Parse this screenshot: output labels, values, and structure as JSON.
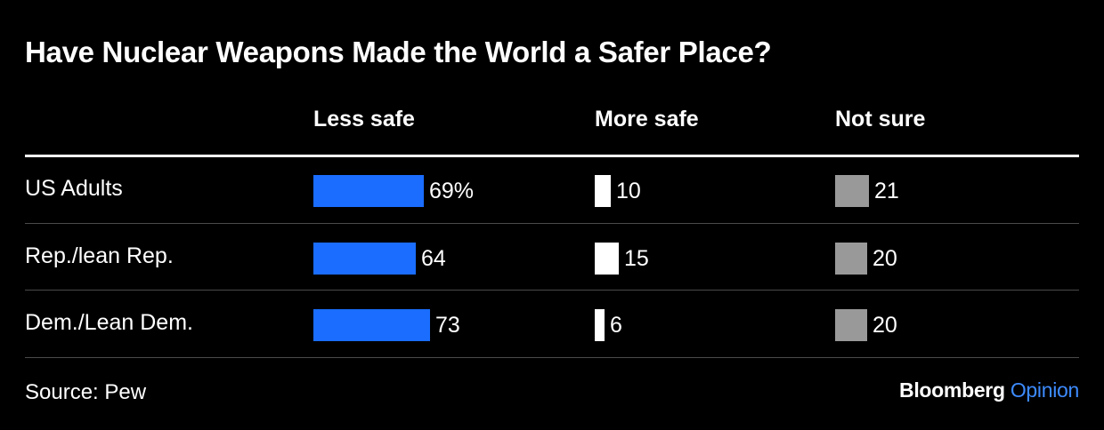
{
  "colors": {
    "background": "#000000",
    "text": "#ffffff",
    "less_safe": "#1a6dff",
    "more_safe": "#ffffff",
    "not_sure": "#999999",
    "brand_accent": "#3d8bff"
  },
  "chart_data": {
    "type": "bar",
    "title": "Have Nuclear Weapons Made the World a Safer Place?",
    "categories": [
      "US Adults",
      "Rep./lean Rep.",
      "Dem./Lean Dem."
    ],
    "series": [
      {
        "name": "Less safe",
        "values": [
          69,
          64,
          73
        ],
        "labels": [
          "69%",
          "64",
          "73"
        ],
        "color": "#1a6dff"
      },
      {
        "name": "More safe",
        "values": [
          10,
          15,
          6
        ],
        "labels": [
          "10",
          "15",
          "6"
        ],
        "color": "#ffffff"
      },
      {
        "name": "Not sure",
        "values": [
          21,
          20,
          20
        ],
        "labels": [
          "21",
          "20",
          "20"
        ],
        "color": "#999999"
      }
    ],
    "unit": "%",
    "orientation": "horizontal",
    "layout": "small multiples, one column per series"
  },
  "footer": {
    "source": "Source: Pew",
    "brand_name": "Bloomberg",
    "brand_suffix": "Opinion"
  }
}
